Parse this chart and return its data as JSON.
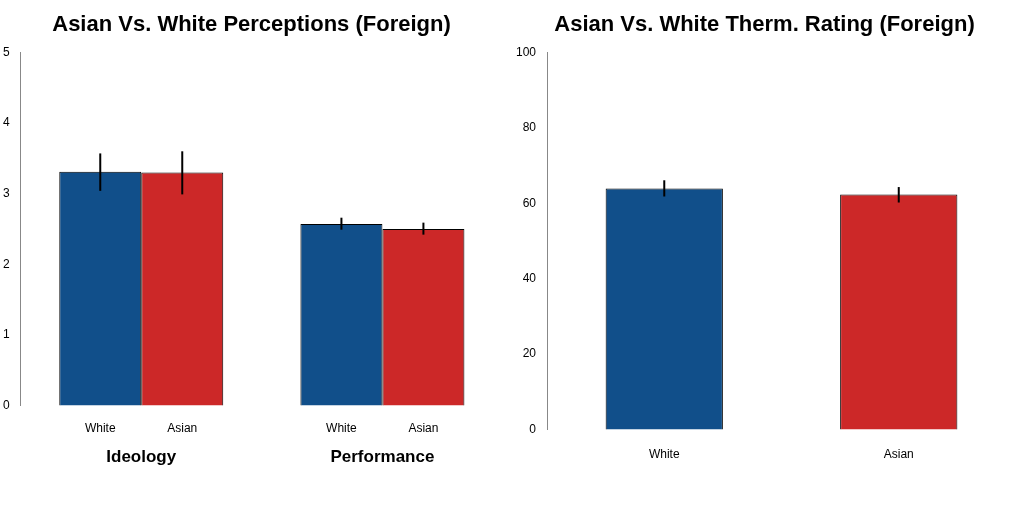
{
  "chart_data": [
    {
      "type": "bar",
      "title": "Asian Vs. White Perceptions (Foreign)",
      "categories": [
        "Ideology",
        "Performance"
      ],
      "series": [
        {
          "name": "White",
          "color": "#114f8a",
          "values": [
            3.31,
            2.57
          ],
          "errors": [
            [
              3.04,
              3.57
            ],
            [
              2.49,
              2.66
            ]
          ]
        },
        {
          "name": "Asian",
          "color": "#cc2828",
          "values": [
            3.3,
            2.5
          ],
          "errors": [
            [
              2.99,
              3.6
            ],
            [
              2.42,
              2.59
            ]
          ]
        }
      ],
      "ylim": [
        0,
        5
      ],
      "yticks": [
        0,
        1,
        2,
        3,
        4,
        5
      ],
      "grid": false,
      "legend": false
    },
    {
      "type": "bar",
      "title": "Asian Vs. White Therm. Rating (Foreign)",
      "categories": [
        "White",
        "Asian"
      ],
      "values": [
        63.9,
        62.3
      ],
      "colors": [
        "#114f8a",
        "#cc2828"
      ],
      "errors": [
        [
          61.8,
          66.1
        ],
        [
          60.2,
          64.3
        ]
      ],
      "ylim": [
        0,
        100
      ],
      "yticks": [
        0,
        20,
        40,
        60,
        80,
        100
      ],
      "grid": false,
      "legend": false
    }
  ]
}
